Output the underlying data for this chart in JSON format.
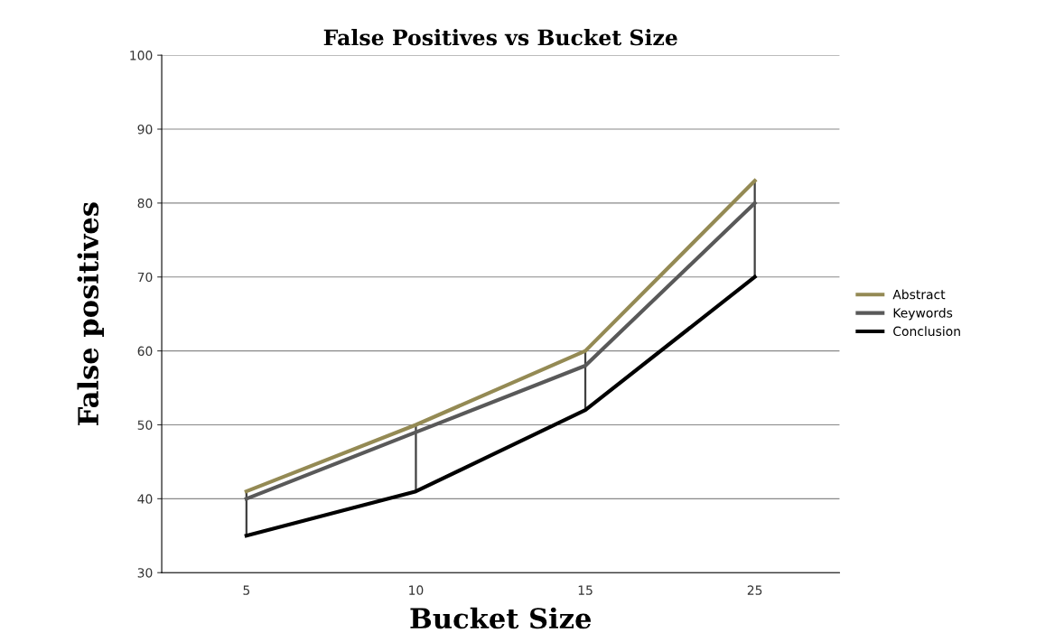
{
  "chart_data": {
    "type": "line",
    "title": "False Positives vs Bucket Size",
    "xlabel": "Bucket Size",
    "ylabel": "False positives",
    "categories": [
      "5",
      "10",
      "15",
      "25"
    ],
    "series": [
      {
        "name": "Abstract",
        "color": "#948a54",
        "values": [
          41,
          50,
          60,
          83
        ]
      },
      {
        "name": "Keywords",
        "color": "#595959",
        "values": [
          40,
          49,
          58,
          80
        ]
      },
      {
        "name": "Conclusion",
        "color": "#000000",
        "values": [
          35,
          41,
          52,
          70
        ]
      },
      {
        "type": "bar",
        "color": "#404040",
        "base": [
          35,
          41,
          52,
          70
        ],
        "values": [
          6,
          9,
          8,
          13
        ]
      }
    ],
    "ylim": [
      30,
      100
    ],
    "yticks": [
      30,
      40,
      50,
      60,
      70,
      80,
      90,
      100
    ],
    "grid": "y",
    "legend": "right",
    "marker": "none",
    "line_style": "solid"
  }
}
